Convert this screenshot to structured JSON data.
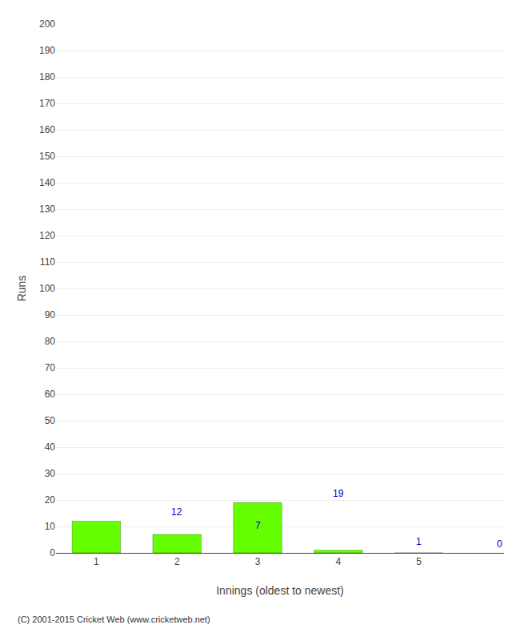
{
  "chart_data": {
    "type": "bar",
    "categories": [
      "1",
      "2",
      "3",
      "4",
      "5"
    ],
    "values": [
      12,
      7,
      19,
      1,
      0
    ],
    "color": "#66ff00",
    "xlabel": "Innings (oldest to newest)",
    "ylabel": "Runs",
    "ylim": [
      0,
      200
    ],
    "yticks": [
      0,
      10,
      20,
      30,
      40,
      50,
      60,
      70,
      80,
      90,
      100,
      110,
      120,
      130,
      140,
      150,
      160,
      170,
      180,
      190,
      200
    ],
    "grid": true,
    "data_labels": true,
    "annotations": [
      "(C) 2001-2015 Cricket Web (www.cricketweb.net)"
    ]
  }
}
